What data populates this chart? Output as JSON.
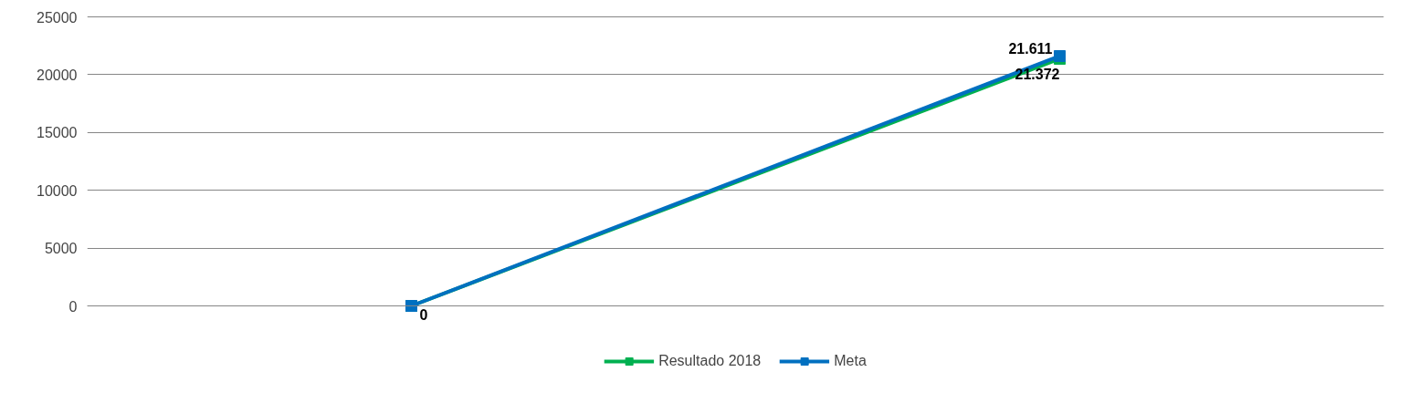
{
  "chart_data": {
    "type": "line",
    "categories": [
      null,
      null
    ],
    "series": [
      {
        "name": "Resultado 2018",
        "color": "#00b050",
        "values": [
          0,
          21372
        ],
        "value_labels": [
          "0",
          "21.372"
        ]
      },
      {
        "name": "Meta",
        "color": "#0070c0",
        "values": [
          0,
          21611
        ],
        "value_labels": [
          null,
          "21.611"
        ]
      }
    ],
    "ylim": [
      0,
      25000
    ],
    "yticks": [
      0,
      5000,
      10000,
      15000,
      20000,
      25000
    ],
    "grid": "y",
    "legend": "bottom",
    "marker": "square",
    "line_style": "solid",
    "tick_labels": "y"
  }
}
